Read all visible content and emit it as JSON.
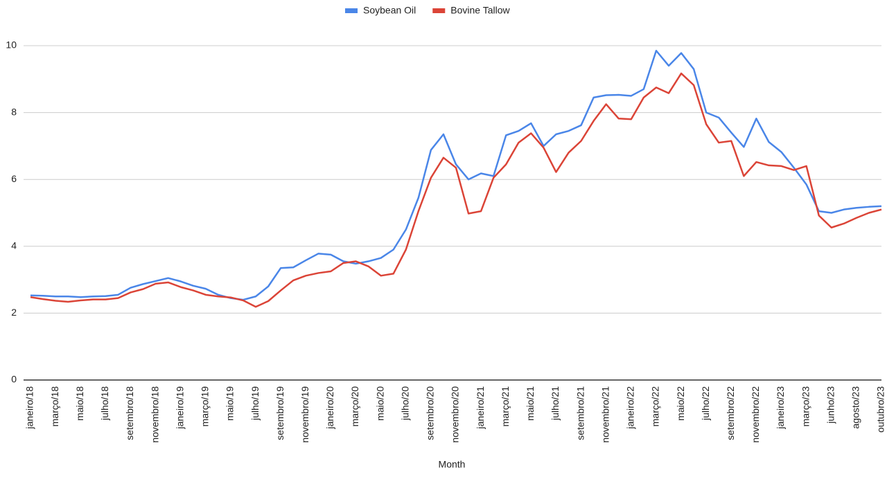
{
  "chart_data": {
    "type": "line",
    "x_label": "Month",
    "categories": [
      "janeiro/18",
      null,
      "março/18",
      null,
      "maio/18",
      null,
      "julho/18",
      null,
      "setembro/18",
      null,
      "novembro/18",
      null,
      "janeiro/19",
      null,
      "março/19",
      null,
      "maio/19",
      null,
      "julho/19",
      null,
      "setembro/19",
      null,
      "novembro/19",
      null,
      "janeiro/20",
      null,
      "março/20",
      null,
      "maio/20",
      null,
      "julho/20",
      null,
      "setembro/20",
      null,
      "novembro/20",
      null,
      "janeiro/21",
      null,
      "março/21",
      null,
      "maio/21",
      null,
      "julho/21",
      null,
      "setembro/21",
      null,
      "novembro/21",
      null,
      "janeiro/22",
      null,
      "março/22",
      null,
      "maio/22",
      null,
      "julho/22",
      null,
      "setembro/22",
      null,
      "novembro/22",
      null,
      "janeiro/23",
      null,
      "março/23",
      null,
      "junho/23",
      null,
      "agosto/23",
      null,
      "outubro/23"
    ],
    "series": [
      {
        "name": "Soybean Oil",
        "color": "#4a86e8",
        "values": [
          2.53,
          2.52,
          2.5,
          2.5,
          2.48,
          2.5,
          2.51,
          2.55,
          2.76,
          2.87,
          2.96,
          3.05,
          2.95,
          2.82,
          2.73,
          2.55,
          2.45,
          2.4,
          2.5,
          2.8,
          3.35,
          3.37,
          3.58,
          3.78,
          3.75,
          3.55,
          3.48,
          3.55,
          3.65,
          3.9,
          4.5,
          5.45,
          6.88,
          7.35,
          6.45,
          6.0,
          6.18,
          6.1,
          7.32,
          7.45,
          7.68,
          7.0,
          7.35,
          7.45,
          7.62,
          8.45,
          8.52,
          8.53,
          8.5,
          8.7,
          9.85,
          9.4,
          9.78,
          9.3,
          8.0,
          7.85,
          7.4,
          6.97,
          7.82,
          7.12,
          6.82,
          6.35,
          5.85,
          5.05,
          5.0,
          5.1,
          5.15,
          5.18,
          5.2
        ]
      },
      {
        "name": "Bovine Tallow",
        "color": "#db4437",
        "values": [
          2.48,
          2.42,
          2.37,
          2.34,
          2.38,
          2.41,
          2.41,
          2.45,
          2.62,
          2.72,
          2.88,
          2.92,
          2.78,
          2.68,
          2.55,
          2.5,
          2.47,
          2.38,
          2.19,
          2.36,
          2.68,
          2.98,
          3.12,
          3.2,
          3.25,
          3.5,
          3.55,
          3.4,
          3.12,
          3.18,
          3.9,
          5.05,
          6.05,
          6.65,
          6.35,
          4.98,
          5.05,
          6.05,
          6.45,
          7.1,
          7.38,
          6.95,
          6.22,
          6.8,
          7.15,
          7.75,
          8.25,
          7.82,
          7.8,
          8.45,
          8.75,
          8.58,
          9.17,
          8.82,
          7.65,
          7.1,
          7.15,
          6.1,
          6.52,
          6.42,
          6.4,
          6.28,
          6.4,
          4.92,
          4.56,
          4.68,
          4.85,
          5.0,
          5.1
        ]
      }
    ],
    "ylim": [
      0,
      10
    ],
    "yticks": [
      0,
      2,
      4,
      6,
      8,
      10
    ],
    "grid": true,
    "legend": "top"
  }
}
